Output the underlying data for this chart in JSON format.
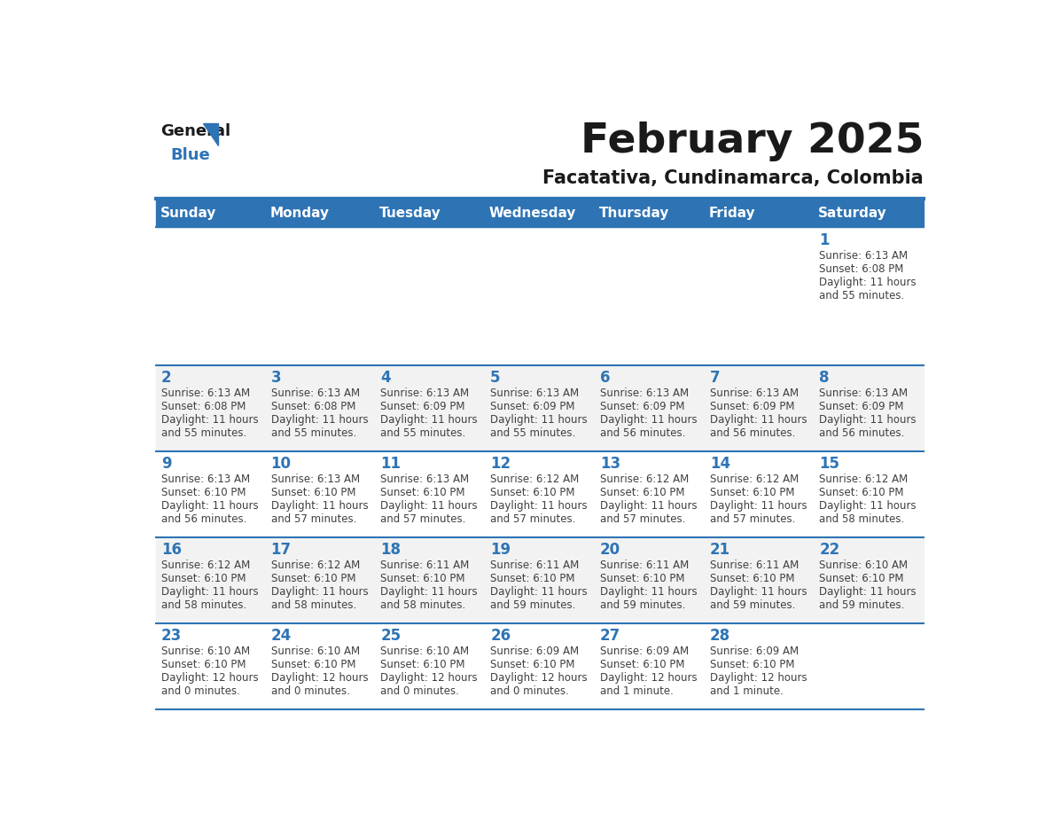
{
  "title": "February 2025",
  "subtitle": "Facatativa, Cundinamarca, Colombia",
  "header_color": "#2E74B5",
  "header_text_color": "#FFFFFF",
  "days_of_week": [
    "Sunday",
    "Monday",
    "Tuesday",
    "Wednesday",
    "Thursday",
    "Friday",
    "Saturday"
  ],
  "background_color": "#FFFFFF",
  "alt_row_color": "#F2F2F2",
  "line_color": "#2E74B5",
  "day_num_color": "#2E74B5",
  "cell_text_color": "#404040",
  "calendar_data": [
    [
      null,
      null,
      null,
      null,
      null,
      null,
      {
        "day": 1,
        "sunrise": "6:13 AM",
        "sunset": "6:08 PM",
        "daylight": "11 hours and 55 minutes."
      }
    ],
    [
      {
        "day": 2,
        "sunrise": "6:13 AM",
        "sunset": "6:08 PM",
        "daylight": "11 hours and 55 minutes."
      },
      {
        "day": 3,
        "sunrise": "6:13 AM",
        "sunset": "6:08 PM",
        "daylight": "11 hours and 55 minutes."
      },
      {
        "day": 4,
        "sunrise": "6:13 AM",
        "sunset": "6:09 PM",
        "daylight": "11 hours and 55 minutes."
      },
      {
        "day": 5,
        "sunrise": "6:13 AM",
        "sunset": "6:09 PM",
        "daylight": "11 hours and 55 minutes."
      },
      {
        "day": 6,
        "sunrise": "6:13 AM",
        "sunset": "6:09 PM",
        "daylight": "11 hours and 56 minutes."
      },
      {
        "day": 7,
        "sunrise": "6:13 AM",
        "sunset": "6:09 PM",
        "daylight": "11 hours and 56 minutes."
      },
      {
        "day": 8,
        "sunrise": "6:13 AM",
        "sunset": "6:09 PM",
        "daylight": "11 hours and 56 minutes."
      }
    ],
    [
      {
        "day": 9,
        "sunrise": "6:13 AM",
        "sunset": "6:10 PM",
        "daylight": "11 hours and 56 minutes."
      },
      {
        "day": 10,
        "sunrise": "6:13 AM",
        "sunset": "6:10 PM",
        "daylight": "11 hours and 57 minutes."
      },
      {
        "day": 11,
        "sunrise": "6:13 AM",
        "sunset": "6:10 PM",
        "daylight": "11 hours and 57 minutes."
      },
      {
        "day": 12,
        "sunrise": "6:12 AM",
        "sunset": "6:10 PM",
        "daylight": "11 hours and 57 minutes."
      },
      {
        "day": 13,
        "sunrise": "6:12 AM",
        "sunset": "6:10 PM",
        "daylight": "11 hours and 57 minutes."
      },
      {
        "day": 14,
        "sunrise": "6:12 AM",
        "sunset": "6:10 PM",
        "daylight": "11 hours and 57 minutes."
      },
      {
        "day": 15,
        "sunrise": "6:12 AM",
        "sunset": "6:10 PM",
        "daylight": "11 hours and 58 minutes."
      }
    ],
    [
      {
        "day": 16,
        "sunrise": "6:12 AM",
        "sunset": "6:10 PM",
        "daylight": "11 hours and 58 minutes."
      },
      {
        "day": 17,
        "sunrise": "6:12 AM",
        "sunset": "6:10 PM",
        "daylight": "11 hours and 58 minutes."
      },
      {
        "day": 18,
        "sunrise": "6:11 AM",
        "sunset": "6:10 PM",
        "daylight": "11 hours and 58 minutes."
      },
      {
        "day": 19,
        "sunrise": "6:11 AM",
        "sunset": "6:10 PM",
        "daylight": "11 hours and 59 minutes."
      },
      {
        "day": 20,
        "sunrise": "6:11 AM",
        "sunset": "6:10 PM",
        "daylight": "11 hours and 59 minutes."
      },
      {
        "day": 21,
        "sunrise": "6:11 AM",
        "sunset": "6:10 PM",
        "daylight": "11 hours and 59 minutes."
      },
      {
        "day": 22,
        "sunrise": "6:10 AM",
        "sunset": "6:10 PM",
        "daylight": "11 hours and 59 minutes."
      }
    ],
    [
      {
        "day": 23,
        "sunrise": "6:10 AM",
        "sunset": "6:10 PM",
        "daylight": "12 hours and 0 minutes."
      },
      {
        "day": 24,
        "sunrise": "6:10 AM",
        "sunset": "6:10 PM",
        "daylight": "12 hours and 0 minutes."
      },
      {
        "day": 25,
        "sunrise": "6:10 AM",
        "sunset": "6:10 PM",
        "daylight": "12 hours and 0 minutes."
      },
      {
        "day": 26,
        "sunrise": "6:09 AM",
        "sunset": "6:10 PM",
        "daylight": "12 hours and 0 minutes."
      },
      {
        "day": 27,
        "sunrise": "6:09 AM",
        "sunset": "6:10 PM",
        "daylight": "12 hours and 1 minute."
      },
      {
        "day": 28,
        "sunrise": "6:09 AM",
        "sunset": "6:10 PM",
        "daylight": "12 hours and 1 minute."
      },
      null
    ]
  ],
  "num_rows": 5,
  "num_cols": 7,
  "row_heights": [
    1.6,
    1.0,
    1.0,
    1.0,
    1.0
  ]
}
